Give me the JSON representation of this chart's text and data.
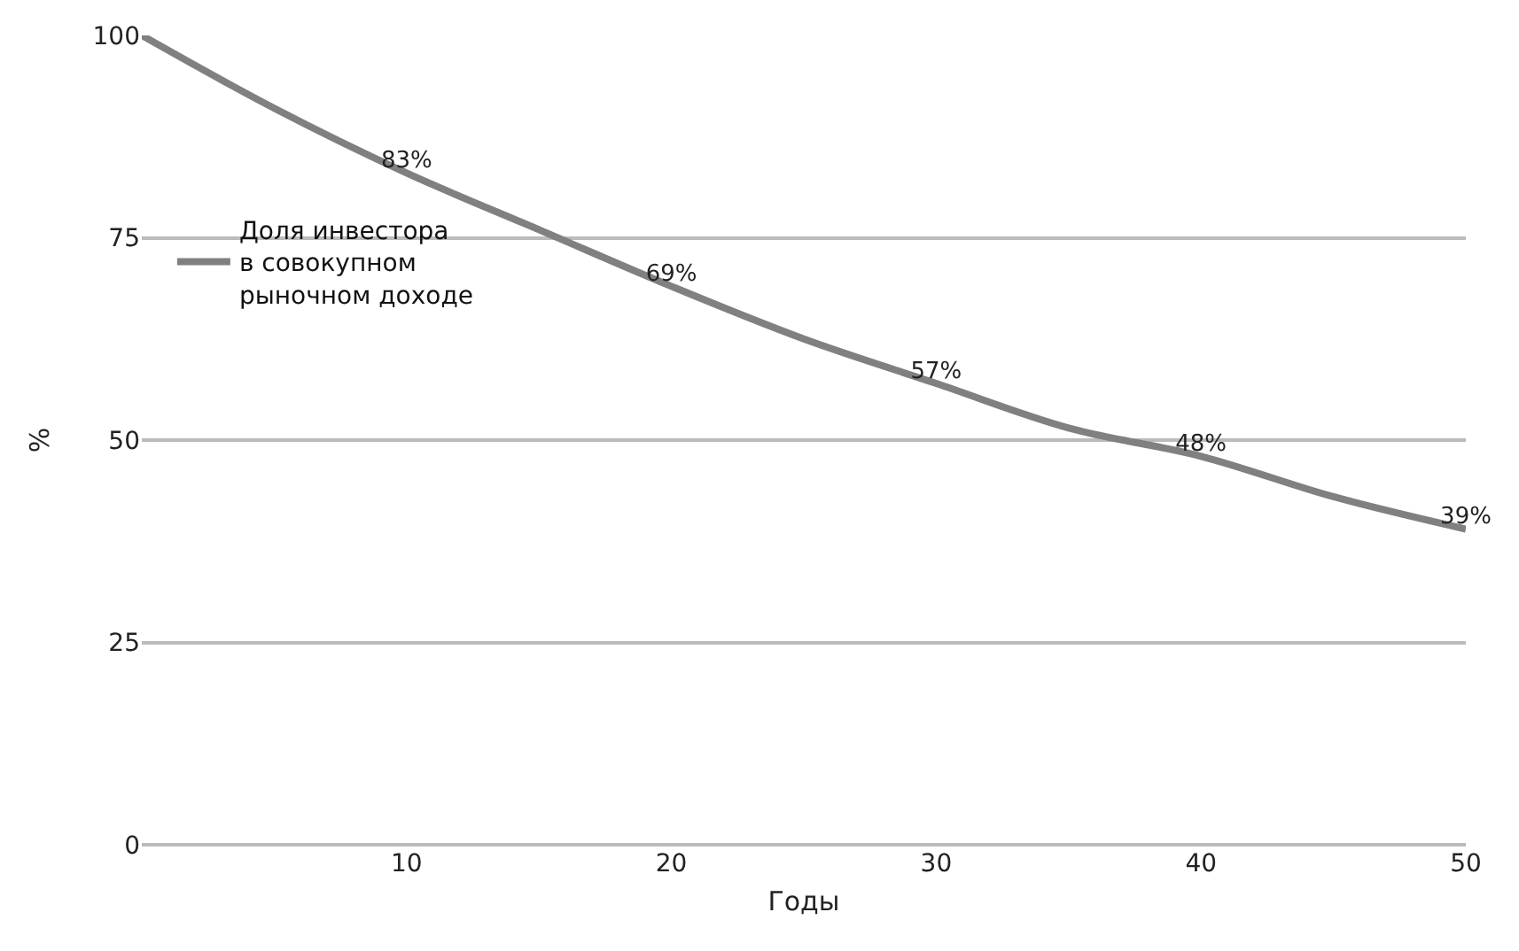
{
  "chart_data": {
    "type": "line",
    "xlabel": "Годы",
    "ylabel": "%",
    "x": [
      0,
      5,
      10,
      15,
      20,
      25,
      30,
      35,
      40,
      45,
      50
    ],
    "series": [
      {
        "name": "Доля инвестора в совокупном рыночном доходе",
        "color": "#808080",
        "values": [
          100,
          91,
          83,
          76,
          69,
          62.5,
          57,
          51.5,
          48,
          43,
          39
        ],
        "value_labels": [
          null,
          null,
          "83%",
          null,
          "69%",
          null,
          "57%",
          null,
          "48%",
          null,
          "39%"
        ]
      }
    ],
    "xlim": [
      0,
      50
    ],
    "xticks": [
      10,
      20,
      30,
      40,
      50
    ],
    "ylim": [
      0,
      100
    ],
    "yticks": [
      0,
      25,
      50,
      75,
      100
    ],
    "grid": "y",
    "legend": "left",
    "marker": "none",
    "line_style": "solid"
  }
}
